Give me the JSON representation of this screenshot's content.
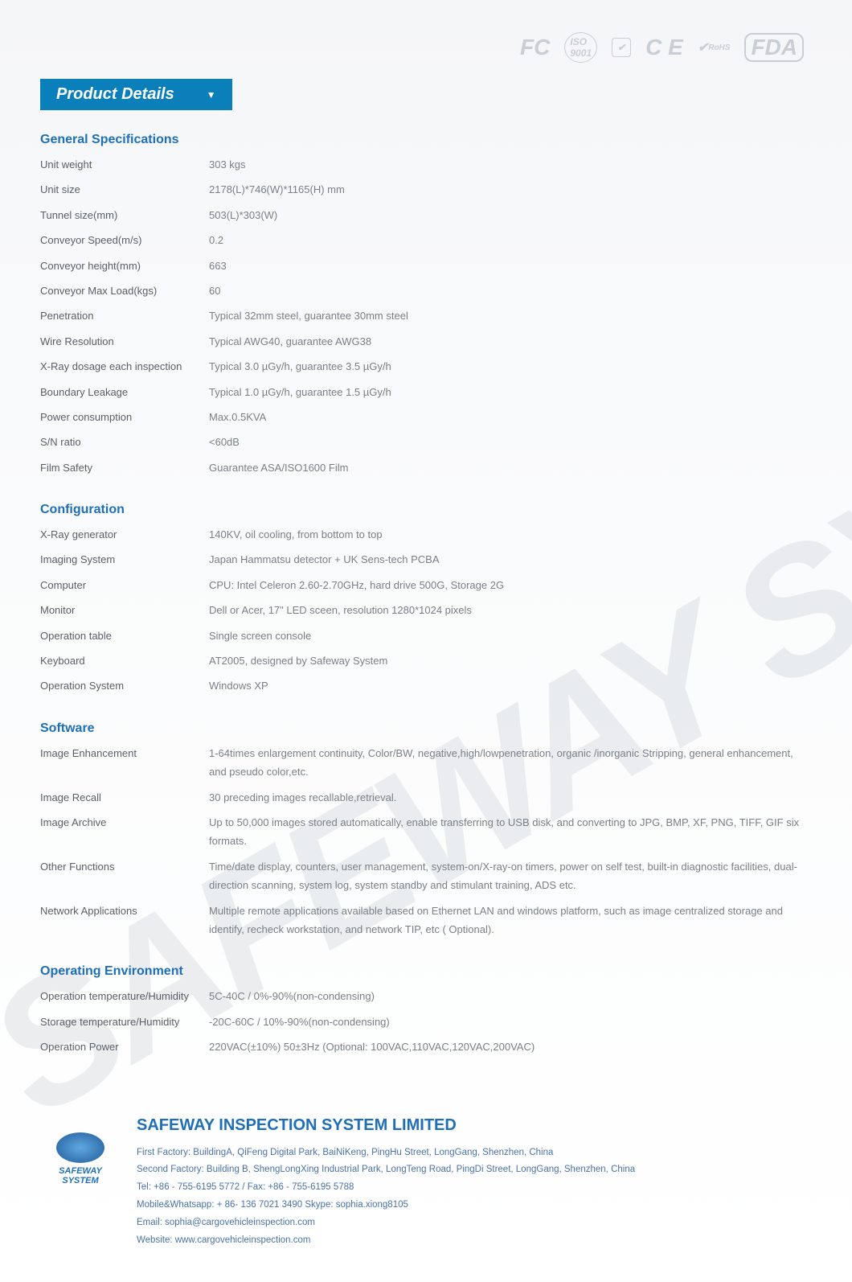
{
  "certifications": [
    "FC",
    "ISO",
    "CE",
    "RoHS",
    "FDA"
  ],
  "header": {
    "title": "Product Details"
  },
  "sections": [
    {
      "title": "General Specifications",
      "rows": [
        {
          "label": "Unit weight",
          "value": "303 kgs"
        },
        {
          "label": "Unit size",
          "value": "2178(L)*746(W)*1165(H) mm"
        },
        {
          "label": "Tunnel size(mm)",
          "value": "503(L)*303(W)"
        },
        {
          "label": "Conveyor Speed(m/s)",
          "value": "0.2"
        },
        {
          "label": "Conveyor height(mm)",
          "value": "663"
        },
        {
          "label": "Conveyor Max Load(kgs)",
          "value": "60"
        },
        {
          "label": "Penetration",
          "value": "Typical 32mm steel, guarantee 30mm steel"
        },
        {
          "label": "Wire Resolution",
          "value": "Typical AWG40, guarantee AWG38"
        },
        {
          "label": "X-Ray dosage each inspection",
          "value": "Typical 3.0 µGy/h, guarantee 3.5 µGy/h"
        },
        {
          "label": "Boundary Leakage",
          "value": "Typical 1.0 µGy/h, guarantee 1.5 µGy/h"
        },
        {
          "label": "Power consumption",
          "value": "Max.0.5KVA"
        },
        {
          "label": "S/N ratio",
          "value": "<60dB"
        },
        {
          "label": "Film Safety",
          "value": "Guarantee ASA/ISO1600 Film"
        }
      ]
    },
    {
      "title": "Configuration",
      "rows": [
        {
          "label": "X-Ray generator",
          "value": "140KV, oil cooling, from bottom to top"
        },
        {
          "label": "Imaging System",
          "value": "Japan Hammatsu detector + UK Sens-tech PCBA"
        },
        {
          "label": "Computer",
          "value": "CPU:  Intel Celeron 2.60-2.70GHz, hard drive 500G, Storage 2G"
        },
        {
          "label": "Monitor",
          "value": "Dell or Acer, 17\" LED sceen, resolution 1280*1024 pixels"
        },
        {
          "label": "Operation table",
          "value": "Single screen console"
        },
        {
          "label": "Keyboard",
          "value": "AT2005, designed by Safeway System"
        },
        {
          "label": "Operation System",
          "value": "Windows XP"
        }
      ]
    },
    {
      "title": "Software",
      "rows": [
        {
          "label": "Image Enhancement",
          "value": "1-64times enlargement continuity, Color/BW, negative,high/lowpenetration, organic /inorganic  Stripping, general enhancement, and pseudo color,etc."
        },
        {
          "label": "Image Recall",
          "value": "30 preceding images recallable,retrieval."
        },
        {
          "label": "Image Archive",
          "value": "Up to 50,000 images stored automatically, enable transferring to USB disk, and converting to JPG, BMP, XF, PNG, TIFF, GIF six formats."
        },
        {
          "label": "Other Functions",
          "value": "Time/date display, counters, user management, system-on/X-ray-on timers, power on self test, built-in diagnostic facilities, dual-direction scanning, system log, system standby and stimulant training, ADS etc."
        },
        {
          "label": "Network Applications",
          "value": "Multiple remote applications available based on Ethernet LAN and windows platform, such as image centralized storage and identify, recheck workstation, and network TIP, etc ( Optional)."
        }
      ]
    },
    {
      "title": "Operating Environment",
      "rows": [
        {
          "label": "Operation temperature/Humidity",
          "value": "5C-40C / 0%-90%(non-condensing)"
        },
        {
          "label": "Storage temperature/Humidity",
          "value": "-20C-60C / 10%-90%(non-condensing)"
        },
        {
          "label": "Operation Power",
          "value": "220VAC(±10%) 50±3Hz (Optional: 100VAC,110VAC,120VAC,200VAC)"
        }
      ]
    }
  ],
  "footer": {
    "brand": "SAFEWAY SYSTEM",
    "company": "SAFEWAY INSPECTION SYSTEM LIMITED",
    "lines": [
      "First Factory: BuildingA, QiFeng Digital Park, BaiNiKeng, PingHu Street, LongGang, Shenzhen, China",
      "Second Factory: Building B, ShengLongXing Industrial Park, LongTeng Road, PingDi Street, LongGang, Shenzhen, China",
      "Tel: +86 - 755-6195 5772  /  Fax: +86 - 755-6195 5788",
      "Mobile&Whatsapp: + 86- 136 7021 3490 Skype: sophia.xiong8105",
      "Email: sophia@cargovehicleinspection.com",
      "Website: www.cargovehicleinspection.com"
    ]
  },
  "colors": {
    "accent": "#0a7fba",
    "section_title": "#1e6fb8",
    "body_text": "#5a6068",
    "value_text": "#7a8088",
    "footer_text": "#4a72a8",
    "watermark": "rgba(200,205,212,0.35)"
  }
}
